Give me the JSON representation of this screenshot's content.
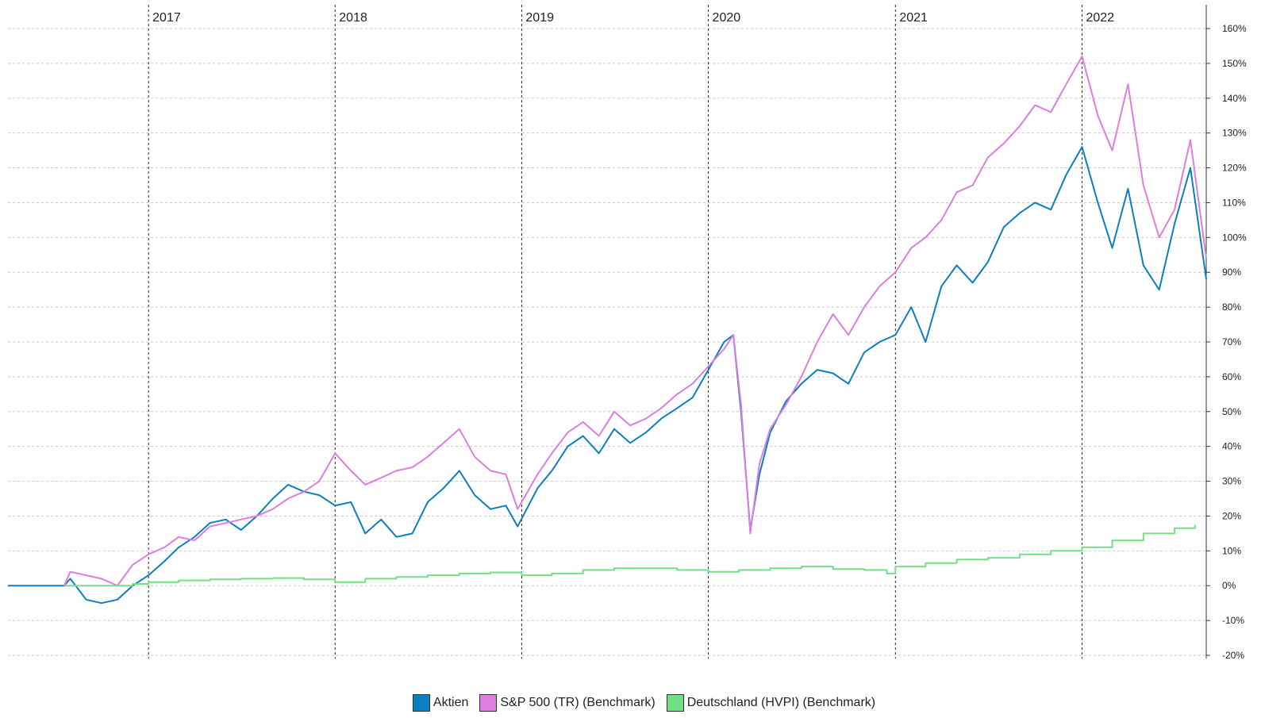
{
  "chart_data": {
    "type": "line",
    "title": "",
    "xlabel": "",
    "ylabel": "",
    "x_ticks": [
      "2017",
      "2018",
      "2019",
      "2020",
      "2021",
      "2022"
    ],
    "y_ticks": [
      "160%",
      "150%",
      "140%",
      "130%",
      "120%",
      "110%",
      "100%",
      "90%",
      "80%",
      "70%",
      "60%",
      "50%",
      "40%",
      "30%",
      "20%",
      "10%",
      "0%",
      "-10%",
      "-20%"
    ],
    "xlim": [
      "2016-04-01",
      "2022-09-01"
    ],
    "ylim": [
      -20,
      160
    ],
    "grid": true,
    "legend_position": "bottom",
    "series": [
      {
        "name": "Aktien",
        "color": "#0a7fc1",
        "points": [
          [
            "2016-04-01",
            0
          ],
          [
            "2016-07-20",
            0
          ],
          [
            "2016-08-01",
            2
          ],
          [
            "2016-09-01",
            -4
          ],
          [
            "2016-10-01",
            -5
          ],
          [
            "2016-11-01",
            -4
          ],
          [
            "2016-12-01",
            0
          ],
          [
            "2017-01-01",
            3
          ],
          [
            "2017-02-01",
            7
          ],
          [
            "2017-03-01",
            11
          ],
          [
            "2017-04-01",
            14
          ],
          [
            "2017-05-01",
            18
          ],
          [
            "2017-06-01",
            19
          ],
          [
            "2017-07-01",
            16
          ],
          [
            "2017-08-01",
            20
          ],
          [
            "2017-09-01",
            25
          ],
          [
            "2017-10-01",
            29
          ],
          [
            "2017-11-01",
            27
          ],
          [
            "2017-12-01",
            26
          ],
          [
            "2018-01-01",
            23
          ],
          [
            "2018-02-01",
            24
          ],
          [
            "2018-03-01",
            15
          ],
          [
            "2018-04-01",
            19
          ],
          [
            "2018-05-01",
            14
          ],
          [
            "2018-06-01",
            15
          ],
          [
            "2018-07-01",
            24
          ],
          [
            "2018-08-01",
            28
          ],
          [
            "2018-09-01",
            33
          ],
          [
            "2018-10-01",
            26
          ],
          [
            "2018-11-01",
            22
          ],
          [
            "2018-12-01",
            23
          ],
          [
            "2018-12-24",
            17
          ],
          [
            "2019-02-01",
            28
          ],
          [
            "2019-03-01",
            33
          ],
          [
            "2019-04-01",
            40
          ],
          [
            "2019-05-01",
            43
          ],
          [
            "2019-06-01",
            38
          ],
          [
            "2019-07-01",
            45
          ],
          [
            "2019-08-01",
            41
          ],
          [
            "2019-09-01",
            44
          ],
          [
            "2019-10-01",
            48
          ],
          [
            "2019-11-01",
            51
          ],
          [
            "2019-12-01",
            54
          ],
          [
            "2020-01-01",
            62
          ],
          [
            "2020-02-01",
            70
          ],
          [
            "2020-02-19",
            72
          ],
          [
            "2020-03-05",
            50
          ],
          [
            "2020-03-23",
            16
          ],
          [
            "2020-04-10",
            32
          ],
          [
            "2020-05-01",
            44
          ],
          [
            "2020-06-01",
            53
          ],
          [
            "2020-07-01",
            58
          ],
          [
            "2020-08-01",
            62
          ],
          [
            "2020-09-01",
            61
          ],
          [
            "2020-10-01",
            58
          ],
          [
            "2020-11-01",
            67
          ],
          [
            "2020-12-01",
            70
          ],
          [
            "2021-01-01",
            72
          ],
          [
            "2021-02-01",
            80
          ],
          [
            "2021-03-01",
            70
          ],
          [
            "2021-04-01",
            86
          ],
          [
            "2021-05-01",
            92
          ],
          [
            "2021-06-01",
            87
          ],
          [
            "2021-07-01",
            93
          ],
          [
            "2021-08-01",
            103
          ],
          [
            "2021-09-01",
            107
          ],
          [
            "2021-10-01",
            110
          ],
          [
            "2021-11-01",
            108
          ],
          [
            "2021-12-01",
            118
          ],
          [
            "2022-01-01",
            126
          ],
          [
            "2022-02-01",
            110
          ],
          [
            "2022-03-01",
            97
          ],
          [
            "2022-04-01",
            114
          ],
          [
            "2022-05-01",
            92
          ],
          [
            "2022-06-01",
            85
          ],
          [
            "2022-07-01",
            104
          ],
          [
            "2022-08-01",
            120
          ],
          [
            "2022-09-01",
            88
          ]
        ]
      },
      {
        "name": "S&P 500 (TR) (Benchmark)",
        "color": "#dd7de0",
        "points": [
          [
            "2016-07-20",
            0
          ],
          [
            "2016-08-01",
            4
          ],
          [
            "2016-09-01",
            3
          ],
          [
            "2016-10-01",
            2
          ],
          [
            "2016-11-01",
            0
          ],
          [
            "2016-12-01",
            6
          ],
          [
            "2017-01-01",
            9
          ],
          [
            "2017-02-01",
            11
          ],
          [
            "2017-03-01",
            14
          ],
          [
            "2017-04-01",
            13
          ],
          [
            "2017-05-01",
            17
          ],
          [
            "2017-06-01",
            18
          ],
          [
            "2017-07-01",
            19
          ],
          [
            "2017-08-01",
            20
          ],
          [
            "2017-09-01",
            22
          ],
          [
            "2017-10-01",
            25
          ],
          [
            "2017-11-01",
            27
          ],
          [
            "2017-12-01",
            30
          ],
          [
            "2018-01-01",
            38
          ],
          [
            "2018-02-01",
            33
          ],
          [
            "2018-03-01",
            29
          ],
          [
            "2018-04-01",
            31
          ],
          [
            "2018-05-01",
            33
          ],
          [
            "2018-06-01",
            34
          ],
          [
            "2018-07-01",
            37
          ],
          [
            "2018-08-01",
            41
          ],
          [
            "2018-09-01",
            45
          ],
          [
            "2018-10-01",
            37
          ],
          [
            "2018-11-01",
            33
          ],
          [
            "2018-12-01",
            32
          ],
          [
            "2018-12-24",
            22
          ],
          [
            "2019-02-01",
            32
          ],
          [
            "2019-03-01",
            38
          ],
          [
            "2019-04-01",
            44
          ],
          [
            "2019-05-01",
            47
          ],
          [
            "2019-06-01",
            43
          ],
          [
            "2019-07-01",
            50
          ],
          [
            "2019-08-01",
            46
          ],
          [
            "2019-09-01",
            48
          ],
          [
            "2019-10-01",
            51
          ],
          [
            "2019-11-01",
            55
          ],
          [
            "2019-12-01",
            58
          ],
          [
            "2020-01-01",
            63
          ],
          [
            "2020-02-01",
            68
          ],
          [
            "2020-02-19",
            72
          ],
          [
            "2020-03-05",
            52
          ],
          [
            "2020-03-23",
            15
          ],
          [
            "2020-04-10",
            35
          ],
          [
            "2020-05-01",
            45
          ],
          [
            "2020-06-01",
            52
          ],
          [
            "2020-07-01",
            60
          ],
          [
            "2020-08-01",
            70
          ],
          [
            "2020-09-01",
            78
          ],
          [
            "2020-10-01",
            72
          ],
          [
            "2020-11-01",
            80
          ],
          [
            "2020-12-01",
            86
          ],
          [
            "2021-01-01",
            90
          ],
          [
            "2021-02-01",
            97
          ],
          [
            "2021-03-01",
            100
          ],
          [
            "2021-04-01",
            105
          ],
          [
            "2021-05-01",
            113
          ],
          [
            "2021-06-01",
            115
          ],
          [
            "2021-07-01",
            123
          ],
          [
            "2021-08-01",
            127
          ],
          [
            "2021-09-01",
            132
          ],
          [
            "2021-10-01",
            138
          ],
          [
            "2021-11-01",
            136
          ],
          [
            "2021-12-01",
            144
          ],
          [
            "2022-01-01",
            152
          ],
          [
            "2022-02-01",
            135
          ],
          [
            "2022-03-01",
            125
          ],
          [
            "2022-04-01",
            144
          ],
          [
            "2022-05-01",
            115
          ],
          [
            "2022-06-01",
            100
          ],
          [
            "2022-07-01",
            108
          ],
          [
            "2022-08-01",
            128
          ],
          [
            "2022-09-01",
            94
          ]
        ]
      },
      {
        "name": "Deutschland (HVPI) (Benchmark)",
        "color": "#72e082",
        "step": true,
        "points": [
          [
            "2016-07-20",
            0
          ],
          [
            "2016-09-01",
            0
          ],
          [
            "2016-12-01",
            0.5
          ],
          [
            "2017-01-01",
            1
          ],
          [
            "2017-03-01",
            1.5
          ],
          [
            "2017-05-01",
            1.8
          ],
          [
            "2017-07-01",
            2
          ],
          [
            "2017-09-01",
            2.2
          ],
          [
            "2017-11-01",
            1.8
          ],
          [
            "2018-01-01",
            1
          ],
          [
            "2018-03-01",
            2
          ],
          [
            "2018-05-01",
            2.5
          ],
          [
            "2018-07-01",
            3
          ],
          [
            "2018-09-01",
            3.5
          ],
          [
            "2018-11-01",
            3.8
          ],
          [
            "2019-01-01",
            3
          ],
          [
            "2019-03-01",
            3.5
          ],
          [
            "2019-05-01",
            4.5
          ],
          [
            "2019-07-01",
            5
          ],
          [
            "2019-09-01",
            5
          ],
          [
            "2019-11-01",
            4.5
          ],
          [
            "2020-01-01",
            4
          ],
          [
            "2020-03-01",
            4.5
          ],
          [
            "2020-05-01",
            5
          ],
          [
            "2020-07-01",
            5.5
          ],
          [
            "2020-09-01",
            4.8
          ],
          [
            "2020-11-01",
            4.5
          ],
          [
            "2020-12-15",
            3.5
          ],
          [
            "2021-01-01",
            5.5
          ],
          [
            "2021-03-01",
            6.5
          ],
          [
            "2021-05-01",
            7.5
          ],
          [
            "2021-07-01",
            8
          ],
          [
            "2021-09-01",
            9
          ],
          [
            "2021-11-01",
            10
          ],
          [
            "2022-01-01",
            11
          ],
          [
            "2022-03-01",
            13
          ],
          [
            "2022-05-01",
            15
          ],
          [
            "2022-07-01",
            16.5
          ],
          [
            "2022-08-10",
            17.5
          ]
        ]
      }
    ]
  }
}
